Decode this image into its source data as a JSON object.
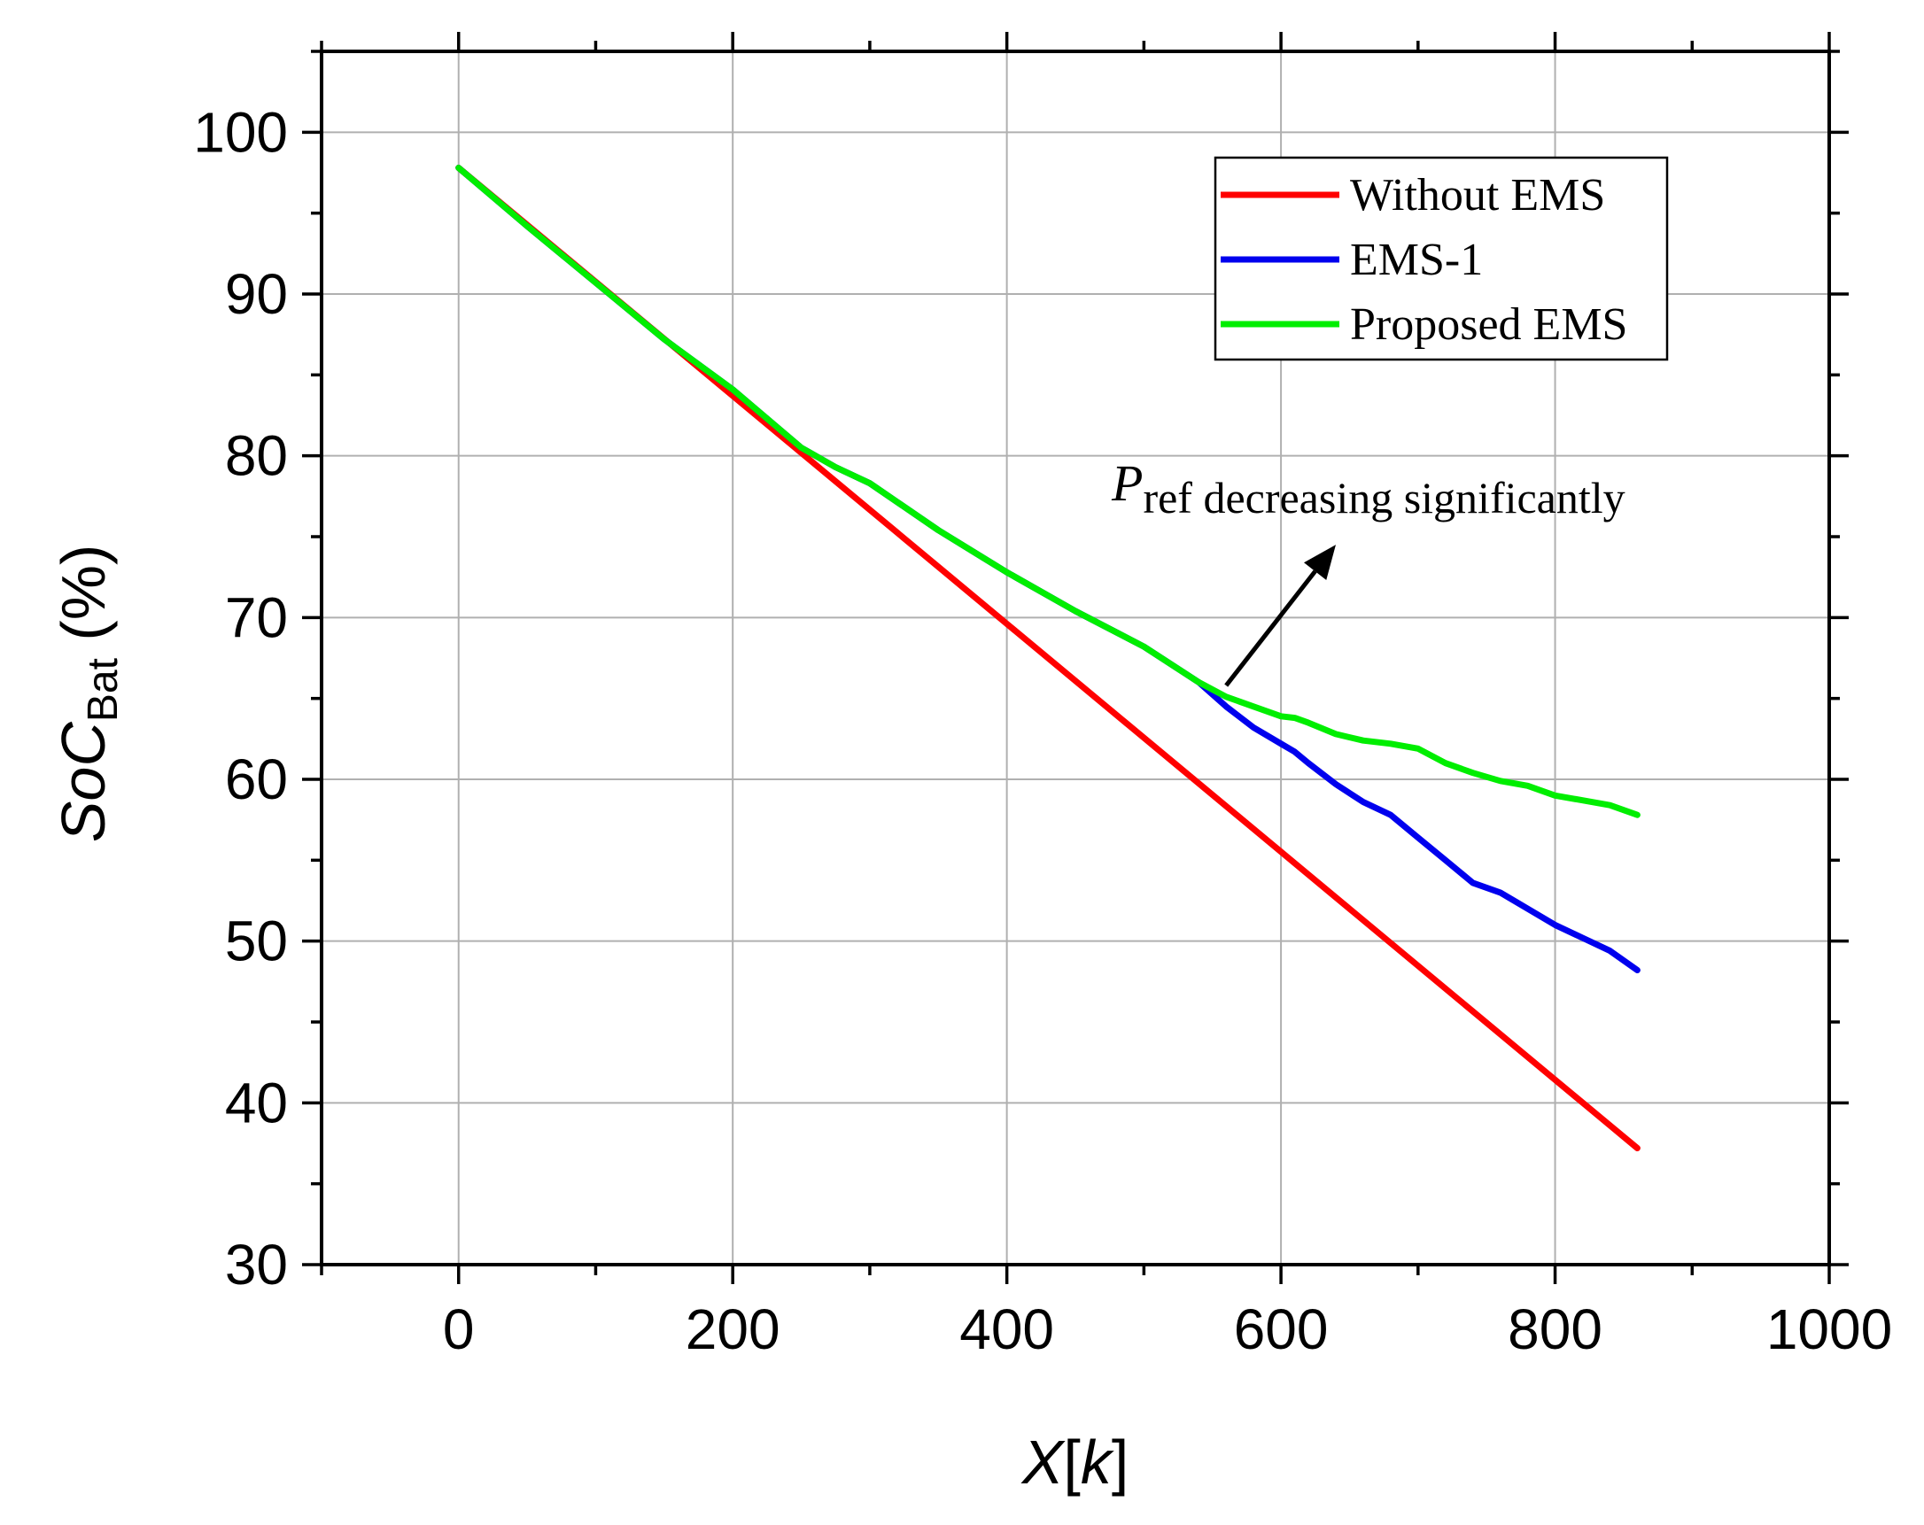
{
  "chart_data": {
    "type": "line",
    "xlabel_main": "X",
    "xlabel_bracket_open": "[",
    "xlabel_var": "k",
    "xlabel_bracket_close": "]",
    "ylabel_main": "SoC",
    "ylabel_sub": "Bat",
    "ylabel_unit": " (%)",
    "xlim": [
      -100,
      1000
    ],
    "ylim": [
      30,
      105
    ],
    "xticks": [
      0,
      200,
      400,
      600,
      800,
      1000
    ],
    "yticks": [
      30,
      40,
      50,
      60,
      70,
      80,
      90,
      100
    ],
    "grid": true,
    "legend_position": "top-right",
    "series": [
      {
        "name": "Without EMS",
        "color": "#ff0000",
        "x": [
          0,
          860
        ],
        "y": [
          97.8,
          37.2
        ]
      },
      {
        "name": "EMS-1",
        "color": "#0000ee",
        "x": [
          0,
          50,
          100,
          150,
          200,
          250,
          275,
          300,
          350,
          400,
          450,
          500,
          540,
          560,
          580,
          600,
          610,
          620,
          640,
          660,
          680,
          700,
          720,
          740,
          760,
          780,
          800,
          820,
          840,
          860
        ],
        "y": [
          97.8,
          94.2,
          90.7,
          87.2,
          84.1,
          80.5,
          79.3,
          78.3,
          75.4,
          72.8,
          70.4,
          68.2,
          66.0,
          64.5,
          63.2,
          62.2,
          61.7,
          61.0,
          59.7,
          58.6,
          57.8,
          56.4,
          55.0,
          53.6,
          53.0,
          52.0,
          51.0,
          50.2,
          49.4,
          48.2
        ]
      },
      {
        "name": "Proposed EMS",
        "color": "#00ee00",
        "x": [
          0,
          50,
          100,
          150,
          200,
          250,
          275,
          300,
          350,
          400,
          450,
          500,
          540,
          560,
          580,
          600,
          610,
          620,
          640,
          660,
          680,
          700,
          720,
          740,
          760,
          780,
          800,
          820,
          840,
          860
        ],
        "y": [
          97.8,
          94.2,
          90.7,
          87.2,
          84.1,
          80.5,
          79.3,
          78.3,
          75.4,
          72.8,
          70.4,
          68.2,
          66.0,
          65.1,
          64.5,
          63.9,
          63.8,
          63.5,
          62.8,
          62.4,
          62.2,
          61.9,
          61.0,
          60.4,
          59.9,
          59.6,
          59.0,
          58.7,
          58.4,
          57.8
        ]
      }
    ],
    "annotation": {
      "symbol": "P",
      "subscript": "ref",
      "text": " decreasing significantly",
      "arrow_from": [
        560,
        65.8
      ],
      "arrow_to": [
        640,
        74.5
      ]
    }
  }
}
